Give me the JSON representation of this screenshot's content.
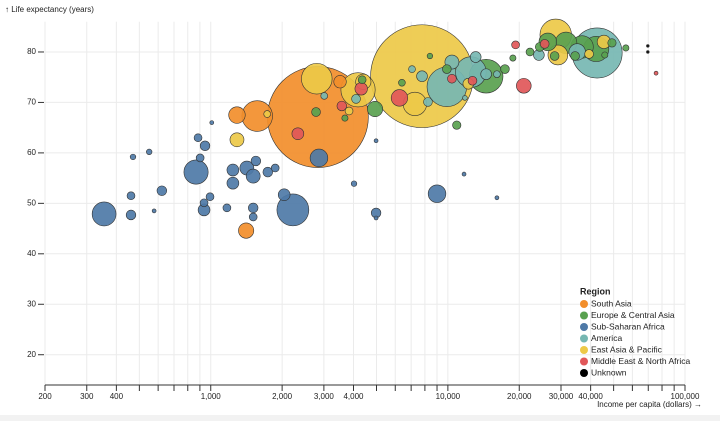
{
  "chart_data": {
    "type": "scatter",
    "y_label": "↑ Life expectancy (years)",
    "x_label": "Income per capita (dollars) →",
    "legend_title": "Region",
    "legend": "bottom-right",
    "x_scale": "log",
    "grid": true,
    "xlim": [
      200,
      100000
    ],
    "ylim": [
      14,
      86
    ],
    "xticks": [
      200,
      300,
      400,
      {
        "value": 1000,
        "label": "1,000"
      },
      {
        "value": 2000,
        "label": "2,000"
      },
      {
        "value": 3000,
        "label": "3,000"
      },
      {
        "value": 4000,
        "label": "4,000"
      },
      {
        "value": 10000,
        "label": "10,000"
      },
      {
        "value": 20000,
        "label": "20,000"
      },
      {
        "value": 30000,
        "label": "30,000"
      },
      {
        "value": 40000,
        "label": "40,000"
      },
      {
        "value": 100000,
        "label": "100,000"
      }
    ],
    "xminor_ticks": [
      500,
      600,
      700,
      800,
      900,
      5000,
      6000,
      7000,
      8000,
      9000,
      50000,
      60000,
      70000,
      80000,
      90000
    ],
    "yticks": [
      20,
      30,
      40,
      50,
      60,
      70,
      80
    ],
    "series": [
      {
        "name": "South Asia",
        "color": "#f28e2b",
        "x": [
          2830,
          1570,
          1290,
          1410,
          3510
        ],
        "values": [
          67.1,
          67.3,
          67.5,
          44.6,
          74.1
        ],
        "sizes": [
          1300,
          120,
          35,
          30,
          20
        ]
      },
      {
        "name": "Europe & Central Asia",
        "color": "#59a14f",
        "x": [
          2780,
          4930,
          3680,
          6400,
          10900,
          14500,
          17400,
          18800,
          24400,
          26400,
          31500,
          36800,
          42200,
          49200,
          56300,
          34400,
          45900,
          22200,
          28200,
          9900,
          8400,
          4350
        ],
        "values": [
          68.1,
          68.7,
          66.9,
          73.9,
          65.5,
          75.2,
          76.6,
          78.8,
          81,
          82,
          81.8,
          81,
          80.6,
          81.8,
          80.8,
          79.2,
          79.4,
          80,
          79.2,
          76.6,
          79.2,
          74.5
        ],
        "sizes": [
          10,
          30,
          5,
          6,
          9,
          145,
          10,
          5,
          10,
          40,
          60,
          65,
          82,
          9,
          5,
          10,
          5,
          8,
          10,
          10,
          4,
          8
        ]
      },
      {
        "name": "Sub-Saharan Africa",
        "color": "#4e79a7",
        "x": [
          355,
          461,
          461,
          470,
          550,
          577,
          622,
          867,
          902,
          884,
          946,
          937,
          937,
          1010,
          993,
          1170,
          1240,
          1240,
          1420,
          1510,
          1550,
          1510,
          1510,
          1740,
          1870,
          2220,
          2040,
          2860,
          4020,
          4980,
          4980,
          4980,
          9000,
          11700,
          16100
        ],
        "values": [
          47.9,
          47.7,
          51.5,
          59.2,
          60.2,
          48.5,
          52.5,
          56.2,
          59,
          63,
          61.4,
          48.7,
          50.1,
          66,
          51.3,
          49.1,
          56.6,
          54,
          57,
          55.4,
          58.4,
          49.1,
          47.3,
          56.2,
          57,
          48.7,
          51.7,
          59,
          53.9,
          48.1,
          47.1,
          62.4,
          51.9,
          55.8,
          51.1
        ],
        "sizes": [
          73,
          12,
          8,
          4,
          4,
          2,
          12,
          75,
          8,
          8,
          12,
          18,
          8,
          2,
          8,
          8,
          18,
          18,
          25,
          25,
          12,
          12,
          8,
          12,
          8,
          130,
          18,
          40,
          4,
          12,
          2,
          2,
          40,
          2,
          2
        ]
      },
      {
        "name": "America",
        "color": "#76b7b2",
        "x": [
          3010,
          9900,
          12500,
          42600,
          13100,
          14500,
          7780,
          7060,
          10400,
          16100,
          4100,
          8240,
          24200,
          35100,
          11800
        ],
        "values": [
          71.3,
          73.1,
          76,
          79.8,
          79,
          75.6,
          75.2,
          76.6,
          78,
          75.6,
          70.7,
          70.1,
          79.4,
          80,
          70.9
        ],
        "sizes": [
          6,
          200,
          120,
          320,
          15,
          15,
          15,
          6,
          25,
          6,
          10,
          10,
          15,
          35,
          3
        ]
      },
      {
        "name": "East Asia & Pacific",
        "color": "#edc948",
        "x": [
          7780,
          2800,
          4180,
          7260,
          1290,
          1730,
          28500,
          29100,
          45500,
          39400,
          12200,
          3830,
          4400
        ],
        "values": [
          75.2,
          74.7,
          72.5,
          69.7,
          62.6,
          67.7,
          83.4,
          79.4,
          82,
          79.6,
          73.7,
          68.3,
          74.1
        ],
        "sizes": [
          1350,
          120,
          150,
          70,
          25,
          6,
          127,
          50,
          23,
          10,
          15,
          8,
          30
        ]
      },
      {
        "name": "Middle East & North Africa",
        "color": "#e15759",
        "x": [
          20900,
          6250,
          3570,
          2330,
          4310,
          12700,
          19300,
          75500,
          25600,
          10400
        ],
        "values": [
          73.3,
          70.9,
          69.3,
          63.8,
          72.7,
          74.3,
          81.4,
          75.8,
          81.6,
          74.7
        ],
        "sizes": [
          28,
          35,
          12,
          18,
          20,
          10,
          8,
          2,
          10,
          10
        ]
      },
      {
        "name": "Unknown",
        "color": "#000000",
        "x": [
          69700,
          69700
        ],
        "values": [
          81.2,
          80
        ],
        "sizes": [
          1,
          1
        ]
      }
    ]
  }
}
